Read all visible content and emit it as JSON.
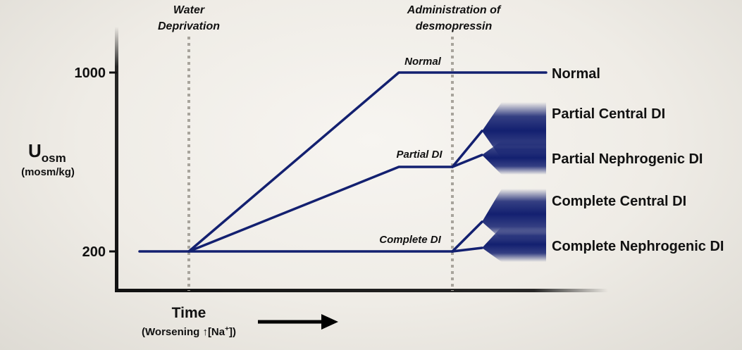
{
  "diagram": {
    "y_axis": {
      "label_main": "U",
      "label_sub": "osm",
      "label_units": "(mosm/kg)"
    },
    "y_ticks": [
      "1000",
      "200"
    ],
    "x_axis": {
      "label_main": "Time",
      "label_sub_prefix": "(Worsening ",
      "label_sub_arrow": "↑",
      "label_sub_na": "[Na",
      "label_sub_sup": "+",
      "label_sub_suffix": "])"
    },
    "events": {
      "water_deprivation": [
        "Water",
        "Deprivation"
      ],
      "desmopressin": [
        "Administration of",
        "desmopressin"
      ]
    },
    "line_labels": {
      "normal": "Normal",
      "partial": "Partial DI",
      "complete": "Complete DI"
    },
    "outcomes": {
      "normal": "Normal",
      "partial_central": "Partial Central DI",
      "partial_nephrogenic": "Partial Nephrogenic DI",
      "complete_central": "Complete Central DI",
      "complete_nephrogenic": "Complete Nephrogenic DI"
    },
    "colors": {
      "line": "#132070",
      "axis": "#111111",
      "dotted": "#a8a49c"
    }
  }
}
